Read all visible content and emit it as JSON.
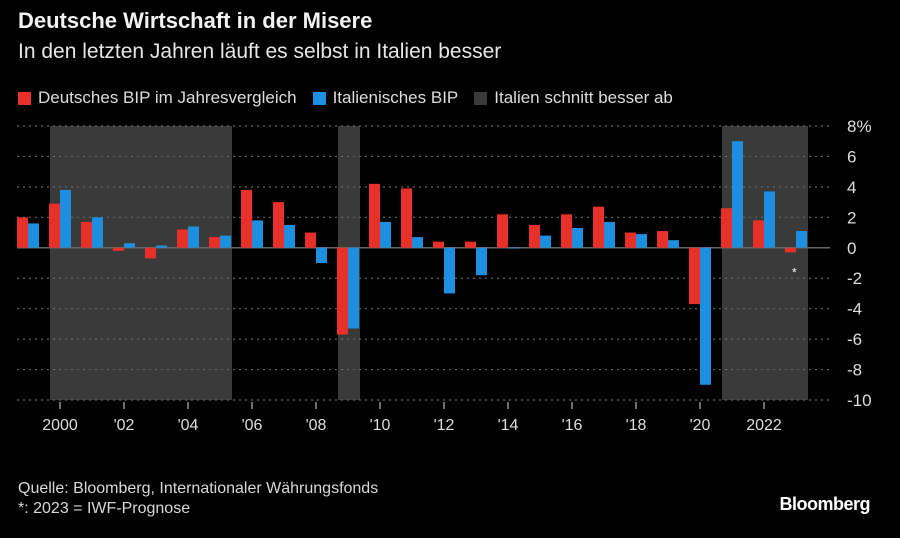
{
  "chart_data": {
    "type": "bar",
    "title": "Deutsche Wirtschaft in der Misere",
    "subtitle": "In den letzten Jahren läuft es selbst in Italien besser",
    "x": [
      1999,
      2000,
      2001,
      2002,
      2003,
      2004,
      2005,
      2006,
      2007,
      2008,
      2009,
      2010,
      2011,
      2012,
      2013,
      2014,
      2015,
      2016,
      2017,
      2018,
      2019,
      2020,
      2021,
      2022,
      2023
    ],
    "series": [
      {
        "name": "Deutsches BIP im Jahresvergleich",
        "color": "#e8302a",
        "values": [
          2.0,
          2.9,
          1.7,
          -0.2,
          -0.7,
          1.2,
          0.7,
          3.8,
          3.0,
          1.0,
          -5.7,
          4.2,
          3.9,
          0.4,
          0.4,
          2.2,
          1.5,
          2.2,
          2.7,
          1.0,
          1.1,
          -3.7,
          2.6,
          1.8,
          -0.3
        ]
      },
      {
        "name": "Italienisches BIP",
        "color": "#1e8fe0",
        "values": [
          1.6,
          3.8,
          2.0,
          0.3,
          0.15,
          1.4,
          0.8,
          1.8,
          1.5,
          -1.0,
          -5.3,
          1.7,
          0.7,
          -3.0,
          -1.8,
          0.0,
          0.8,
          1.3,
          1.7,
          0.9,
          0.5,
          -9.0,
          7.0,
          3.7,
          1.1
        ]
      }
    ],
    "shaded": {
      "name": "Italien schnitt besser ab",
      "color": "#3a3a3a",
      "ranges": [
        [
          2000,
          2005
        ],
        [
          2009,
          2009
        ],
        [
          2021,
          2023
        ]
      ]
    },
    "xticks": [
      2000,
      2002,
      2004,
      2006,
      2008,
      2010,
      2012,
      2014,
      2016,
      2018,
      2020,
      2022
    ],
    "xtick_labels": [
      "2000",
      "'02",
      "'04",
      "'06",
      "'08",
      "'10",
      "'12",
      "'14",
      "'16",
      "'18",
      "'20",
      "2022"
    ],
    "yticks": [
      8,
      6,
      4,
      2,
      0,
      -2,
      -4,
      -6,
      -8,
      -10
    ],
    "ytick_labels": [
      "8%",
      "6",
      "4",
      "2",
      "0",
      "-2",
      "-4",
      "-6",
      "-8",
      "-10"
    ],
    "ylim": [
      -10,
      8
    ],
    "grid": true,
    "legend_position": "top-left",
    "annotation": "*"
  },
  "footer": {
    "source": "Quelle: Bloomberg, Internationaler Währungsfonds",
    "note": "*: 2023 = IWF-Prognose",
    "logo": "Bloomberg"
  }
}
